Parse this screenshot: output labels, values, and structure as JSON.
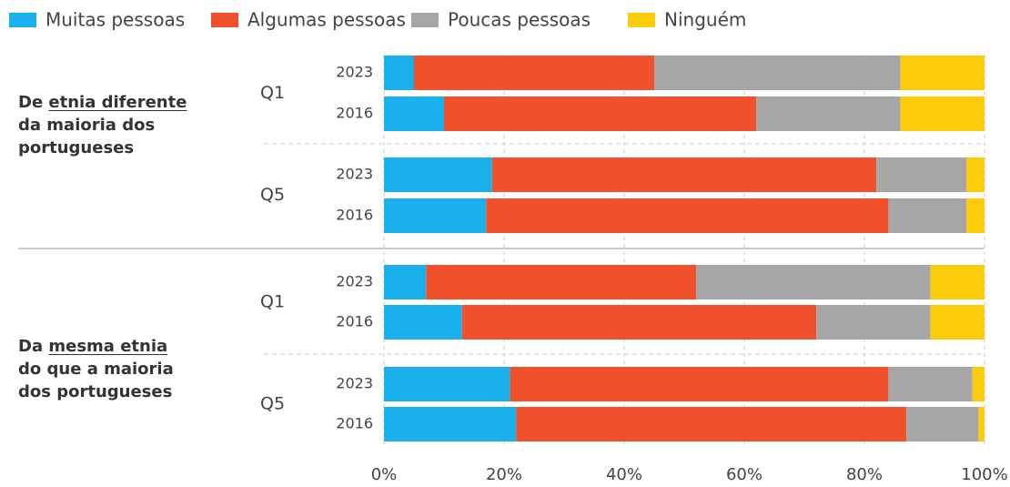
{
  "chart_data": {
    "type": "bar",
    "orientation": "horizontal",
    "stacked": true,
    "categories": [
      "2023",
      "2016",
      "2023",
      "2016",
      "2023",
      "2016",
      "2023",
      "2016"
    ],
    "groups": [
      {
        "label_start": "De ",
        "label_underlined": "etnia diferente",
        "label_end": "da maioria dos portugueses",
        "subgroups": [
          {
            "name": "Q1",
            "rows": [
              0,
              1
            ]
          },
          {
            "name": "Q5",
            "rows": [
              2,
              3
            ]
          }
        ]
      },
      {
        "label_start": "Da ",
        "label_underlined": "mesma etnia",
        "label_end": "do que a maioria dos portugueses",
        "subgroups": [
          {
            "name": "Q1",
            "rows": [
              4,
              5
            ]
          },
          {
            "name": "Q5",
            "rows": [
              6,
              7
            ]
          }
        ]
      }
    ],
    "series": [
      {
        "name": "Muitas pessoas",
        "color": "#1ab0ee",
        "values": [
          5,
          10,
          18,
          17,
          7,
          13,
          21,
          22
        ]
      },
      {
        "name": "Algumas pessoas",
        "color": "#f0502a",
        "values": [
          40,
          52,
          64,
          67,
          45,
          59,
          63,
          65
        ]
      },
      {
        "name": "Poucas pessoas",
        "color": "#a6a6a6",
        "values": [
          41,
          24,
          15,
          13,
          39,
          19,
          14,
          12
        ]
      },
      {
        "name": "Ninguém",
        "color": "#fccb0a",
        "values": [
          14,
          14,
          3,
          3,
          9,
          9,
          2,
          1
        ]
      }
    ],
    "xlim": [
      0,
      100
    ],
    "xticks": [
      {
        "value": 0,
        "label": "0%"
      },
      {
        "value": 20,
        "label": "20%"
      },
      {
        "value": 40,
        "label": "40%"
      },
      {
        "value": 60,
        "label": "60%"
      },
      {
        "value": 80,
        "label": "80%"
      },
      {
        "value": 100,
        "label": "100%"
      }
    ],
    "grid": true,
    "legend": "top"
  }
}
